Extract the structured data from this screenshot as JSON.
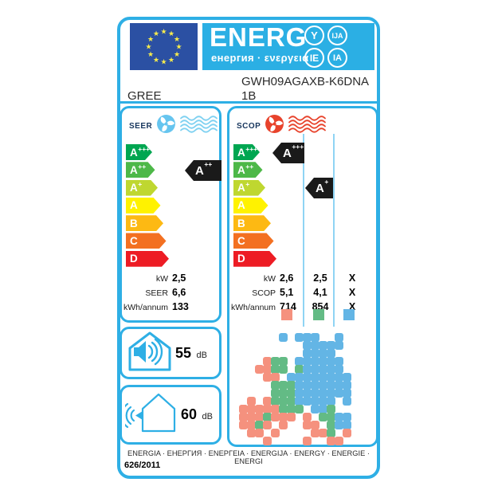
{
  "header": {
    "energ_word": "ENERG",
    "energ_subtitle": "енергия · ενεργεια",
    "suffix_circles": [
      "Y",
      "IJA",
      "IE",
      "IA"
    ],
    "model": "GWH09AGAXB-K6DNA",
    "brand": "GREE",
    "variant": "1B"
  },
  "energy_scale": {
    "classes": [
      {
        "label": "A+++",
        "color": "#00A651"
      },
      {
        "label": "A++",
        "color": "#4DB848"
      },
      {
        "label": "A+",
        "color": "#BFD730"
      },
      {
        "label": "A",
        "color": "#FFF200"
      },
      {
        "label": "B",
        "color": "#FDB913"
      },
      {
        "label": "C",
        "color": "#F37021"
      },
      {
        "label": "D",
        "color": "#ED1C24"
      }
    ]
  },
  "seer": {
    "title": "SEER",
    "rating": "A++",
    "values": [
      {
        "label": "kW",
        "value": "2,5"
      },
      {
        "label": "SEER",
        "value": "6,6"
      },
      {
        "label": "kWh/annum",
        "value": "133"
      }
    ]
  },
  "scop": {
    "title": "SCOP",
    "rating_warmer": "A+++",
    "rating_average": "A+",
    "values": [
      {
        "label": "kW",
        "c1": "2,6",
        "c2": "2,5",
        "c3": "X"
      },
      {
        "label": "SCOP",
        "c1": "5,1",
        "c2": "4,1",
        "c3": "X"
      },
      {
        "label": "kWh/annum",
        "c1": "714",
        "c2": "854",
        "c3": "X"
      }
    ],
    "climate_zones": [
      {
        "name": "warmer",
        "color": "#F5917E"
      },
      {
        "name": "average",
        "color": "#63BB85"
      },
      {
        "name": "colder",
        "color": "#63B5E5"
      }
    ]
  },
  "noise": {
    "indoor": {
      "value": "55",
      "unit": "dB"
    },
    "outdoor": {
      "value": "60",
      "unit": "dB"
    }
  },
  "map": {
    "palette": {
      "S": "#F5917E",
      "G": "#63BB85",
      "B": "#63B5E5"
    },
    "grid": [
      ".....B.BBB..B....",
      "........BBBBB....",
      "........BBBB.....",
      "...SGG.BBBBBB....",
      "..SSGG.GBBBBB....",
      "...SS.BBBBBBBB...",
      "....GGGBBBBBBB...",
      "....GGGBBBBBBB...",
      ".S.SGGGBBBBB.B...",
      "SSSSSGGG.BBG.....",
      "SSSGSSS.S.GGBB...",
      "SSGS.S..SS.GBB...",
      ".SS.S....SSG.S...",
      "...S....S..SS...."
    ]
  },
  "footer": {
    "languages": "ENERGIA · ЕНЕРГИЯ · ΕΝΕΡΓΕΙΑ · ENERGIJA · ENERGY · ENERGIE · ENERGI",
    "regulation": "626/2011"
  },
  "colors": {
    "label_blue": "#2EAFE5",
    "flag_blue": "#2B50A3",
    "star_yellow": "#F8EC4C",
    "fan_cool": "#66C5EF",
    "fan_heat": "#E8432C",
    "indicator_black": "#1A1A1A"
  }
}
